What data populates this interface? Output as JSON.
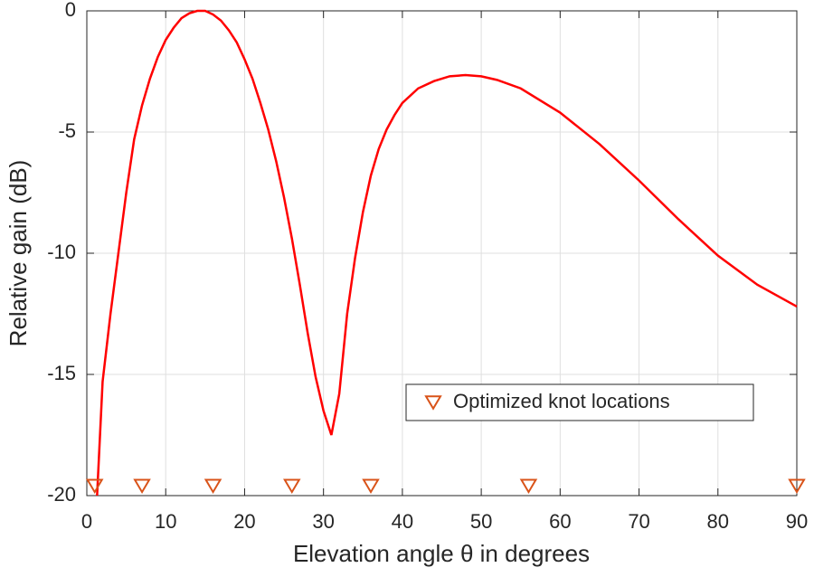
{
  "chart_data": {
    "type": "line",
    "xlabel": "Elevation angle θ in degrees",
    "ylabel": "Relative gain (dB)",
    "xlim": [
      0,
      90
    ],
    "ylim": [
      -20,
      0
    ],
    "xticks": [
      0,
      10,
      20,
      30,
      40,
      50,
      60,
      70,
      80,
      90
    ],
    "yticks": [
      -20,
      -15,
      -10,
      -5,
      0
    ],
    "grid": true,
    "legend_position": "lower right",
    "series": [
      {
        "color": "#ff0000",
        "x": [
          1.3,
          2,
          3,
          4,
          5,
          6,
          7,
          8,
          9,
          10,
          11,
          12,
          13,
          14,
          15,
          16,
          17,
          18,
          19,
          20,
          21,
          22,
          23,
          24,
          25,
          26,
          27,
          28,
          29,
          30,
          31,
          32,
          33,
          34,
          35,
          36,
          37,
          38,
          39,
          40,
          42,
          44,
          46,
          48,
          50,
          52,
          55,
          60,
          65,
          70,
          75,
          80,
          85,
          90
        ],
        "values": [
          -20,
          -15.3,
          -12.5,
          -10,
          -7.5,
          -5.3,
          -3.9,
          -2.8,
          -1.9,
          -1.2,
          -0.7,
          -0.3,
          -0.1,
          0,
          0,
          -0.15,
          -0.4,
          -0.8,
          -1.3,
          -2.0,
          -2.8,
          -3.8,
          -4.9,
          -6.2,
          -7.7,
          -9.4,
          -11.3,
          -13.3,
          -15.1,
          -16.5,
          -17.5,
          -15.8,
          -12.5,
          -10.2,
          -8.3,
          -6.8,
          -5.7,
          -4.9,
          -4.3,
          -3.8,
          -3.2,
          -2.9,
          -2.7,
          -2.65,
          -2.7,
          -2.85,
          -3.2,
          -4.2,
          -5.5,
          -7.0,
          -8.6,
          -10.1,
          -11.3,
          -12.2
        ]
      },
      {
        "name": "Optimized knot locations",
        "type": "scatter",
        "marker": "triangle-down",
        "color": "#d95319",
        "x": [
          1,
          7,
          16,
          26,
          36,
          56,
          90
        ],
        "values": [
          -19.6,
          -19.6,
          -19.6,
          -19.6,
          -19.6,
          -19.6,
          -19.6
        ]
      }
    ]
  }
}
